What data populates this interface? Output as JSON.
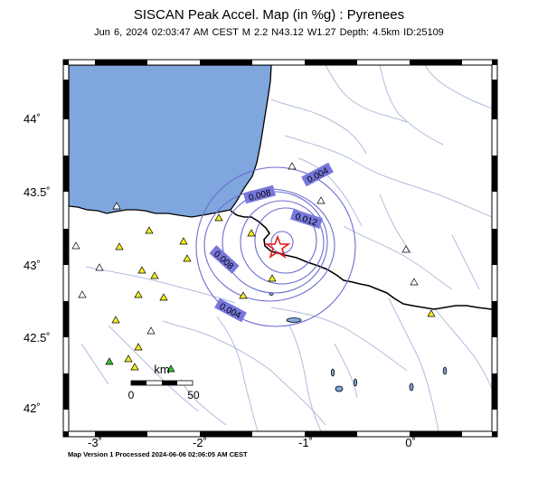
{
  "header": {
    "title": "SISCAN Peak Accel. Map (in %g) : Pyrenees",
    "subtitle": "Jun  6, 2024 02:03:47 AM CEST   M 2.2   N43.12 W1.27   Depth: 4.5km   ID:25109"
  },
  "footer": {
    "text": "Map Version 1 Processed 2024-06-06 02:06:05 AM CEST"
  },
  "axes": {
    "lat_ticks": [
      "44˚",
      "43.5˚",
      "43˚",
      "42.5˚",
      "42˚"
    ],
    "lon_ticks": [
      "-3˚",
      "-2˚",
      "-1˚",
      "0˚"
    ]
  },
  "contours": [
    {
      "label": "0.004"
    },
    {
      "label": "0.008"
    },
    {
      "label": "0.012"
    },
    {
      "label": "0.008"
    },
    {
      "label": "0.004"
    }
  ],
  "scale_bar": {
    "unit": "km",
    "start": "0",
    "end": "50"
  },
  "colors": {
    "sea": "#7fa7de",
    "land": "#ffffff",
    "contour": "#6c6ccf",
    "label_bg": "#7777dd",
    "station_yellow": "#f4ee1c",
    "station_green": "#36c437",
    "epicenter": "#e51919",
    "border": "#000000",
    "rivers": "#b0bcdc"
  }
}
